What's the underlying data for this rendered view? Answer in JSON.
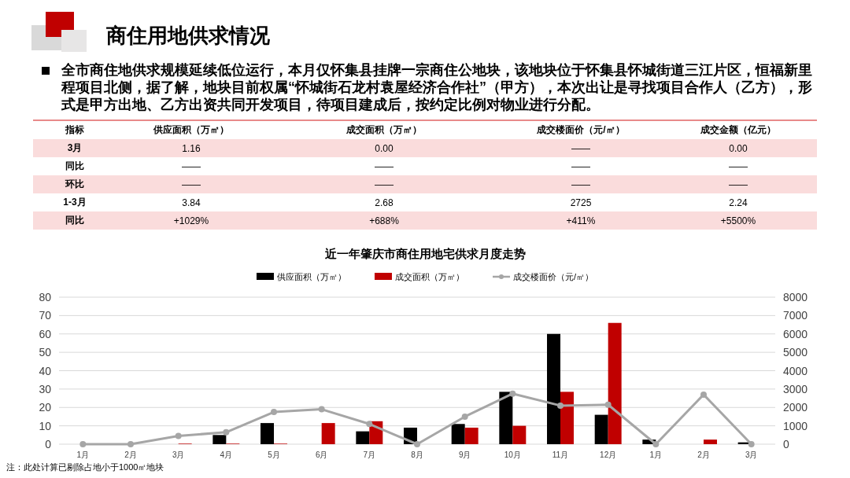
{
  "chart_data": [
    {
      "type": "other",
      "title": "商住用地供求情况",
      "annotations": [
        "全市商住地供求规模延续低位运行，本月仅怀集县挂牌一宗商住公地块，该地块位于怀集县怀城街道三江片区，恒福新里程项目北侧，据了解，地块目前权属“怀城街石龙村袁屋经济合作社”（甲方），本次出让是寻找项目合作人（乙方），形式是甲方出地、乙方出资共同开发项目，待项目建成后，按约定比例对物业进行分配。"
      ],
      "ylabel": "指标",
      "categories": [
        "供应面积（万㎡）",
        "成交面积（万㎡）",
        "成交楼面价（元/㎡）",
        "成交金额（亿元）"
      ],
      "y_categories": [
        "3月",
        "同比",
        "环比",
        "1-3月",
        "同比"
      ],
      "cell_labels": [
        [
          "1.16",
          "0.00",
          "——",
          "0.00"
        ],
        [
          "——",
          "——",
          "——",
          "——"
        ],
        [
          "——",
          "——",
          "——",
          "——"
        ],
        [
          "3.84",
          "2.68",
          "2725",
          "2.24"
        ],
        [
          "+1029%",
          "+688%",
          "+411%",
          "+5500%"
        ]
      ]
    },
    {
      "type": "bar",
      "title": "近一年肇庆市商住用地宅供求月度走势",
      "categories": [
        "1月",
        "2月",
        "3月",
        "4月",
        "5月",
        "6月",
        "7月",
        "8月",
        "9月",
        "10月",
        "11月",
        "12月",
        "1月",
        "2月",
        "3月"
      ],
      "series": [
        {
          "name": "供应面积（万㎡）",
          "color": "#000000",
          "values": [
            0,
            0,
            0,
            5,
            11.5,
            0,
            7,
            9,
            11,
            28.5,
            60,
            16,
            2.5,
            0,
            1
          ]
        },
        {
          "name": "成交面积（万㎡）",
          "color": "#c00000",
          "values": [
            0,
            0,
            0.3,
            0.3,
            0.3,
            11.5,
            12.5,
            0,
            9,
            10,
            28.5,
            66,
            0,
            2.5,
            0
          ]
        },
        {
          "name": "成交楼面价（元/㎡）",
          "type": "line",
          "axis": "y2",
          "color": "#a6a6a6",
          "marker": "circle",
          "line_style": "solid",
          "values": [
            0,
            0,
            450,
            650,
            1750,
            1900,
            1100,
            0,
            1500,
            2750,
            2100,
            2150,
            0,
            2700,
            0
          ]
        }
      ],
      "ylim": [
        0,
        80
      ],
      "yticks": [
        0,
        10,
        20,
        30,
        40,
        50,
        60,
        70,
        80
      ],
      "y2lim": [
        0,
        8000
      ],
      "y2ticks": [
        0,
        1000,
        2000,
        3000,
        4000,
        5000,
        6000,
        7000,
        8000
      ],
      "grid": "y",
      "legend": "top",
      "annotations": [
        "注：此处计算已剔除占地小于1000㎡地块"
      ]
    }
  ]
}
